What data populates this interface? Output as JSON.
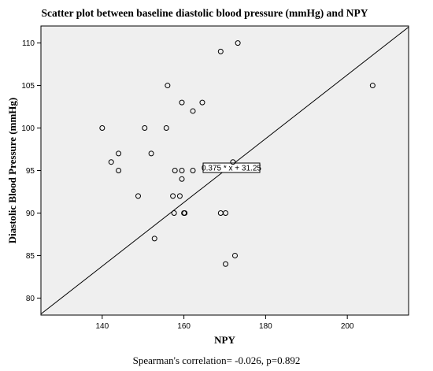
{
  "chart_data": {
    "type": "scatter",
    "title": "Scatter plot between baseline diastolic blood pressure (mmHg) and NPY",
    "xlabel": "NPY",
    "ylabel": "Diastolic Blood Pressure (mmHg)",
    "xlim": [
      125,
      215
    ],
    "ylim": [
      78,
      112
    ],
    "xticks": [
      140,
      160,
      180,
      200
    ],
    "yticks": [
      80,
      85,
      90,
      95,
      100,
      105,
      110
    ],
    "grid": false,
    "legend": "none",
    "background_color": "#efefef",
    "point_color": "#000000",
    "points": [
      {
        "x": 140.0,
        "y": 100
      },
      {
        "x": 142.2,
        "y": 96
      },
      {
        "x": 144.0,
        "y": 97
      },
      {
        "x": 144.0,
        "y": 95
      },
      {
        "x": 148.8,
        "y": 92
      },
      {
        "x": 150.4,
        "y": 100
      },
      {
        "x": 152.0,
        "y": 97
      },
      {
        "x": 152.8,
        "y": 87
      },
      {
        "x": 155.7,
        "y": 100
      },
      {
        "x": 156.0,
        "y": 105
      },
      {
        "x": 157.3,
        "y": 92
      },
      {
        "x": 157.6,
        "y": 90
      },
      {
        "x": 157.8,
        "y": 95
      },
      {
        "x": 159.0,
        "y": 92
      },
      {
        "x": 159.5,
        "y": 95
      },
      {
        "x": 159.5,
        "y": 103
      },
      {
        "x": 159.5,
        "y": 94
      },
      {
        "x": 160.0,
        "y": 90
      },
      {
        "x": 160.2,
        "y": 90
      },
      {
        "x": 162.2,
        "y": 95
      },
      {
        "x": 162.2,
        "y": 102
      },
      {
        "x": 164.5,
        "y": 103
      },
      {
        "x": 169.0,
        "y": 109
      },
      {
        "x": 169.0,
        "y": 90
      },
      {
        "x": 170.2,
        "y": 90
      },
      {
        "x": 170.2,
        "y": 84
      },
      {
        "x": 172.0,
        "y": 96
      },
      {
        "x": 172.5,
        "y": 85
      },
      {
        "x": 173.2,
        "y": 110
      },
      {
        "x": 206.2,
        "y": 105
      }
    ],
    "fit_line": {
      "slope": 0.375,
      "intercept": 31.25,
      "label": "0.375 * x + 31.25"
    },
    "annotation": "Spearman's correlation= -0.026, p=0.892"
  }
}
